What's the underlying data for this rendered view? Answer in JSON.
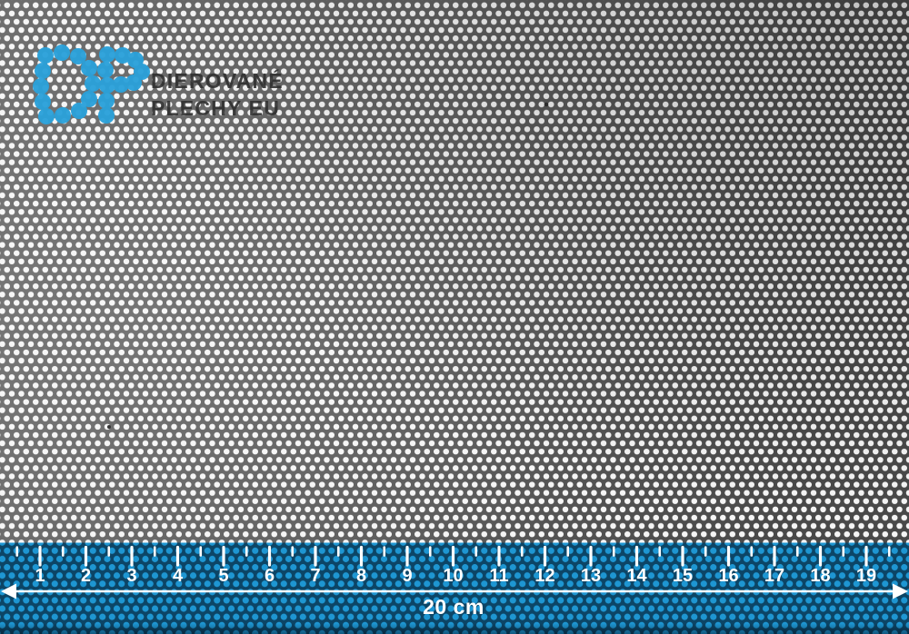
{
  "brand": {
    "monogram": "DP",
    "line1": "DIEROVANÉ",
    "line2": "PLECHY EU",
    "blue": "#2ba1da",
    "text_color": "#303030"
  },
  "sheet": {
    "hole_color": "#f5f5f5",
    "metal_light": "#6e6e6e",
    "metal_mid": "#5a5a5a",
    "metal_dark": "#494949"
  },
  "ruler": {
    "cm_labels": [
      "1",
      "2",
      "3",
      "4",
      "5",
      "6",
      "7",
      "8",
      "9",
      "10",
      "11",
      "12",
      "13",
      "14",
      "15",
      "16",
      "17",
      "18",
      "19"
    ],
    "total_label": "20 cm",
    "band_color": "#0c4566",
    "dot_color": "#1e96d2",
    "tick_color": "#ffffff"
  }
}
